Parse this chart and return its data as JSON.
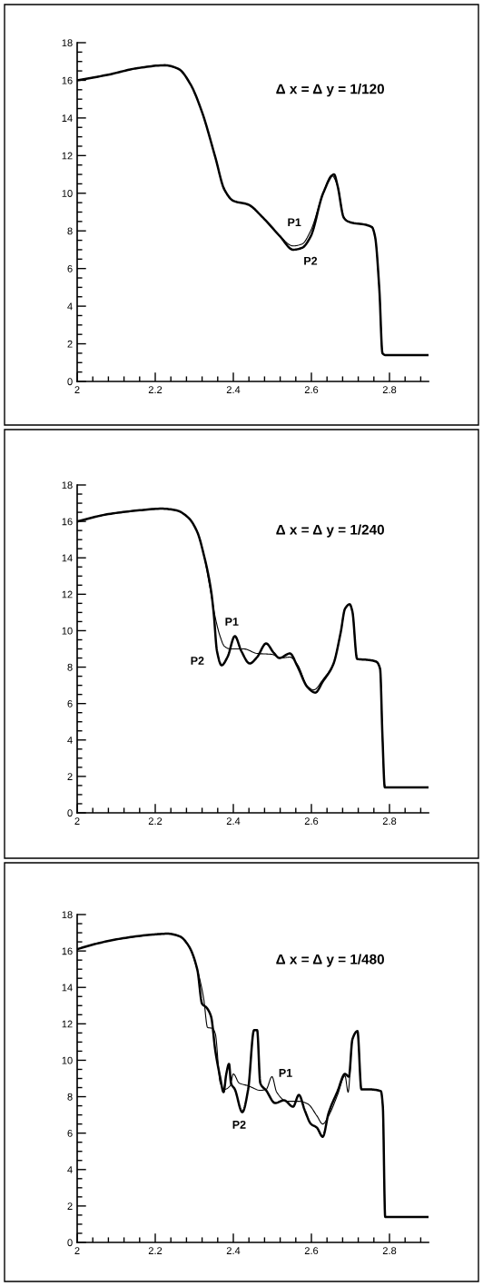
{
  "chart_data": [
    {
      "type": "line",
      "title": "Δ x = Δ y = 1/120",
      "xlim": [
        2,
        2.9
      ],
      "ylim": [
        0,
        18
      ],
      "xticks": [
        2,
        2.2,
        2.4,
        2.6,
        2.8
      ],
      "yticks": [
        0,
        2,
        4,
        6,
        8,
        10,
        12,
        14,
        16,
        18
      ],
      "grid": false,
      "legend": false,
      "marker": "none",
      "line_style": "solid",
      "series": [
        {
          "name": "P1",
          "color": "#000000",
          "x": [
            2.0,
            2.08,
            2.155,
            2.225,
            2.26,
            2.29,
            2.32,
            2.354,
            2.377,
            2.4,
            2.438,
            2.476,
            2.52,
            2.553,
            2.576,
            2.598,
            2.63,
            2.652,
            2.667,
            2.683,
            2.694,
            2.755,
            2.763,
            2.774,
            2.782,
            2.79,
            2.9
          ],
          "values": [
            16.0,
            16.3,
            16.65,
            16.8,
            16.6,
            15.8,
            14.3,
            11.9,
            10.2,
            9.6,
            9.4,
            8.7,
            7.7,
            7.2,
            7.3,
            8.0,
            10.0,
            10.95,
            10.4,
            8.7,
            8.5,
            8.2,
            7.7,
            4.9,
            1.5,
            1.4,
            1.4
          ]
        },
        {
          "name": "P2",
          "color": "#000000",
          "x": [
            2.0,
            2.08,
            2.155,
            2.225,
            2.26,
            2.29,
            2.32,
            2.354,
            2.377,
            2.4,
            2.438,
            2.476,
            2.52,
            2.553,
            2.576,
            2.598,
            2.63,
            2.658,
            2.667,
            2.683,
            2.694,
            2.755,
            2.763,
            2.774,
            2.782,
            2.79,
            2.9
          ],
          "values": [
            16.0,
            16.3,
            16.65,
            16.8,
            16.6,
            15.8,
            14.3,
            11.9,
            10.2,
            9.6,
            9.4,
            8.7,
            7.7,
            7.0,
            7.1,
            7.7,
            10.0,
            11.0,
            10.4,
            8.7,
            8.5,
            8.2,
            7.7,
            4.9,
            1.5,
            1.4,
            1.4
          ]
        }
      ]
    },
    {
      "type": "line",
      "title": "Δ x = Δ y = 1/240",
      "xlim": [
        2,
        2.9
      ],
      "ylim": [
        0,
        18
      ],
      "xticks": [
        2,
        2.2,
        2.4,
        2.6,
        2.8
      ],
      "yticks": [
        0,
        2,
        4,
        6,
        8,
        10,
        12,
        14,
        16,
        18
      ],
      "grid": false,
      "legend": false,
      "marker": "none",
      "line_style": "solid",
      "series": [
        {
          "name": "P1",
          "color": "#000000",
          "x": [
            2.0,
            2.08,
            2.155,
            2.217,
            2.255,
            2.285,
            2.308,
            2.324,
            2.339,
            2.354,
            2.366,
            2.377,
            2.392,
            2.427,
            2.461,
            2.499,
            2.522,
            2.545,
            2.564,
            2.59,
            2.606,
            2.629,
            2.656,
            2.675,
            2.686,
            2.698,
            2.705,
            2.717,
            2.743,
            2.766,
            2.776,
            2.782,
            2.788,
            2.9
          ],
          "values": [
            16.0,
            16.4,
            16.6,
            16.7,
            16.6,
            16.2,
            15.4,
            14.2,
            12.5,
            10.7,
            9.7,
            9.15,
            9.0,
            9.0,
            8.75,
            8.7,
            8.5,
            8.55,
            8.15,
            6.95,
            6.75,
            7.3,
            8.2,
            9.9,
            11.2,
            11.45,
            11.05,
            8.45,
            8.4,
            8.3,
            7.9,
            4.2,
            1.4,
            1.4
          ]
        },
        {
          "name": "P2",
          "color": "#000000",
          "x": [
            2.0,
            2.08,
            2.155,
            2.217,
            2.255,
            2.285,
            2.308,
            2.324,
            2.343,
            2.35,
            2.358,
            2.37,
            2.385,
            2.404,
            2.42,
            2.442,
            2.461,
            2.484,
            2.503,
            2.518,
            2.545,
            2.564,
            2.59,
            2.61,
            2.629,
            2.656,
            2.675,
            2.686,
            2.698,
            2.705,
            2.717,
            2.743,
            2.766,
            2.776,
            2.782,
            2.788,
            2.9
          ],
          "values": [
            16.0,
            16.4,
            16.6,
            16.7,
            16.6,
            16.2,
            15.4,
            14.2,
            12.2,
            10.9,
            8.9,
            8.1,
            8.55,
            9.7,
            8.9,
            8.2,
            8.55,
            9.3,
            8.8,
            8.5,
            8.75,
            8.05,
            6.9,
            6.6,
            7.2,
            8.15,
            9.9,
            11.2,
            11.45,
            11.05,
            8.45,
            8.4,
            8.3,
            7.9,
            4.2,
            1.4,
            1.4
          ]
        }
      ]
    },
    {
      "type": "line",
      "title": "Δ x = Δ y = 1/480",
      "xlim": [
        2,
        2.9
      ],
      "ylim": [
        0,
        18
      ],
      "xticks": [
        2,
        2.2,
        2.4,
        2.6,
        2.8
      ],
      "yticks": [
        0,
        2,
        4,
        6,
        8,
        10,
        12,
        14,
        16,
        18
      ],
      "grid": false,
      "legend": false,
      "marker": "none",
      "line_style": "solid",
      "series": [
        {
          "name": "P1",
          "color": "#000000",
          "x": [
            2.0,
            2.049,
            2.118,
            2.194,
            2.232,
            2.263,
            2.285,
            2.308,
            2.324,
            2.334,
            2.347,
            2.354,
            2.366,
            2.377,
            2.392,
            2.4,
            2.415,
            2.438,
            2.469,
            2.484,
            2.499,
            2.511,
            2.537,
            2.568,
            2.591,
            2.614,
            2.629,
            2.644,
            2.667,
            2.686,
            2.694,
            2.705,
            2.718,
            2.728,
            2.747,
            2.778,
            2.783,
            2.789,
            2.9
          ],
          "values": [
            16.1,
            16.4,
            16.7,
            16.9,
            16.95,
            16.8,
            16.3,
            14.95,
            13.4,
            11.8,
            11.75,
            11.45,
            8.8,
            8.4,
            8.6,
            9.25,
            8.75,
            8.6,
            8.35,
            8.4,
            9.1,
            8.25,
            7.75,
            7.75,
            7.6,
            6.95,
            6.5,
            6.95,
            8.1,
            9.15,
            8.25,
            11.15,
            11.6,
            8.4,
            8.4,
            8.3,
            7.45,
            1.4,
            1.4
          ]
        },
        {
          "name": "P2",
          "color": "#000000",
          "x": [
            2.0,
            2.049,
            2.118,
            2.194,
            2.232,
            2.263,
            2.285,
            2.308,
            2.32,
            2.331,
            2.343,
            2.354,
            2.366,
            2.375,
            2.382,
            2.389,
            2.394,
            2.404,
            2.423,
            2.438,
            2.453,
            2.461,
            2.469,
            2.484,
            2.507,
            2.53,
            2.553,
            2.568,
            2.583,
            2.599,
            2.614,
            2.629,
            2.644,
            2.667,
            2.686,
            2.696,
            2.705,
            2.718,
            2.728,
            2.747,
            2.778,
            2.783,
            2.789,
            2.9
          ],
          "values": [
            16.1,
            16.4,
            16.7,
            16.9,
            16.95,
            16.8,
            16.3,
            14.95,
            13.1,
            12.9,
            12.4,
            10.5,
            9.1,
            8.25,
            9.25,
            9.8,
            8.75,
            8.4,
            7.15,
            8.4,
            11.65,
            11.65,
            8.75,
            8.35,
            7.65,
            7.8,
            7.45,
            8.1,
            7.25,
            6.5,
            6.3,
            5.8,
            7.1,
            8.3,
            9.25,
            9.1,
            11.15,
            11.6,
            8.4,
            8.4,
            8.3,
            7.45,
            1.4,
            1.4
          ]
        }
      ]
    }
  ]
}
